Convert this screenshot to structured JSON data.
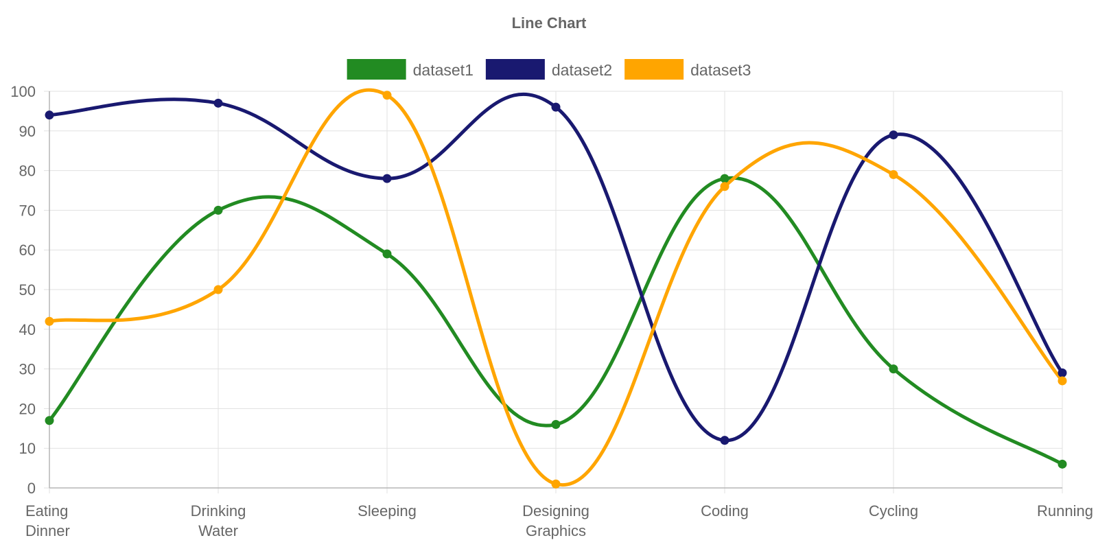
{
  "chart_data": {
    "type": "line",
    "title": "Line Chart",
    "categories": [
      [
        "Eating",
        "Dinner"
      ],
      [
        "Drinking",
        "Water"
      ],
      [
        "Sleeping"
      ],
      [
        "Designing",
        "Graphics"
      ],
      [
        "Coding"
      ],
      [
        "Cycling"
      ],
      [
        "Running"
      ]
    ],
    "ylim": [
      0,
      100
    ],
    "yticks": [
      "0",
      "10",
      "20",
      "30",
      "40",
      "50",
      "60",
      "70",
      "80",
      "90",
      "100"
    ],
    "grid": true,
    "legend_position": "top",
    "series": [
      {
        "name": "dataset1",
        "color": "#228b22",
        "values": [
          17,
          70,
          59,
          16,
          78,
          30,
          6
        ]
      },
      {
        "name": "dataset2",
        "color": "#191970",
        "values": [
          94,
          97,
          78,
          96,
          12,
          89,
          29
        ]
      },
      {
        "name": "dataset3",
        "color": "#ffa500",
        "values": [
          42,
          50,
          99,
          1,
          76,
          79,
          27
        ]
      }
    ]
  }
}
